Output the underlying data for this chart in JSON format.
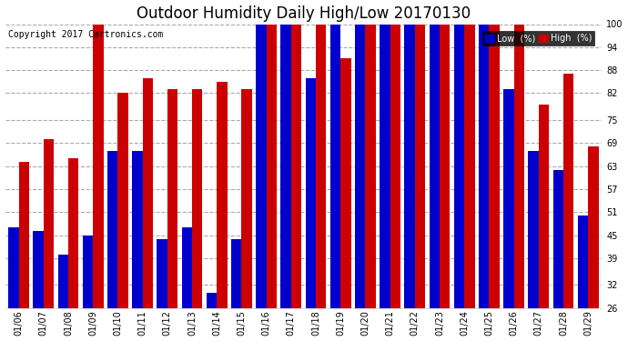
{
  "title": "Outdoor Humidity Daily High/Low 20170130",
  "copyright": "Copyright 2017 Cartronics.com",
  "legend_low": "Low  (%)",
  "legend_high": "High  (%)",
  "dates": [
    "01/06",
    "01/07",
    "01/08",
    "01/09",
    "01/10",
    "01/11",
    "01/12",
    "01/13",
    "01/14",
    "01/15",
    "01/16",
    "01/17",
    "01/18",
    "01/19",
    "01/20",
    "01/21",
    "01/22",
    "01/23",
    "01/24",
    "01/25",
    "01/26",
    "01/27",
    "01/28",
    "01/29"
  ],
  "low_values": [
    47,
    46,
    40,
    45,
    67,
    67,
    44,
    47,
    30,
    44,
    100,
    100,
    86,
    100,
    100,
    100,
    100,
    100,
    100,
    100,
    83,
    67,
    62,
    50
  ],
  "high_values": [
    64,
    70,
    65,
    100,
    82,
    86,
    83,
    83,
    85,
    83,
    100,
    100,
    100,
    91,
    100,
    100,
    100,
    100,
    100,
    100,
    100,
    79,
    87,
    68
  ],
  "ylim": [
    26,
    100
  ],
  "yticks": [
    26,
    32,
    39,
    45,
    51,
    57,
    63,
    69,
    75,
    82,
    88,
    94,
    100
  ],
  "bar_width": 0.42,
  "low_color": "#0000cc",
  "high_color": "#cc0000",
  "bg_color": "#ffffff",
  "grid_color": "#aaaaaa",
  "title_fontsize": 12,
  "copyright_fontsize": 7,
  "tick_fontsize": 7
}
